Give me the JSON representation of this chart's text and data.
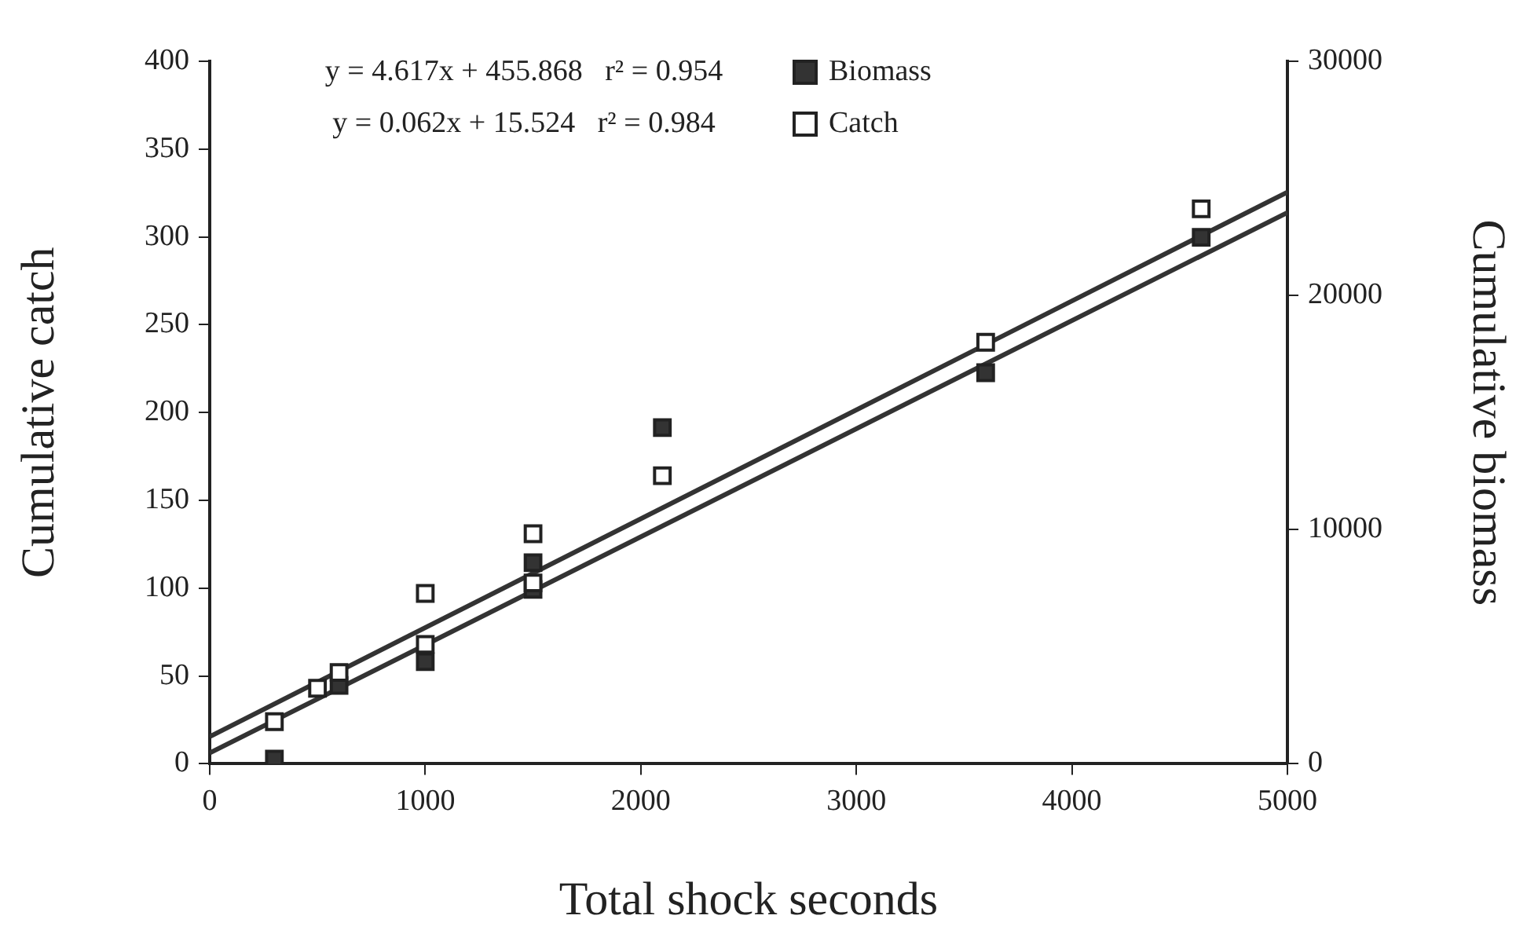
{
  "chart_data": {
    "type": "scatter",
    "xlabel": "Total shock seconds",
    "ylabel": "Cumulative catch",
    "y2label": "Cumulative biomass",
    "xlim": [
      0,
      5000
    ],
    "xticks": [
      0,
      1000,
      2000,
      3000,
      4000,
      5000
    ],
    "ylim": [
      0,
      400
    ],
    "yticks": [
      0,
      50,
      100,
      150,
      200,
      250,
      300,
      350,
      400
    ],
    "y2lim": [
      0,
      30000
    ],
    "y2ticks": [
      0,
      10000,
      20000,
      30000
    ],
    "grid": false,
    "legend": "top",
    "marker": "square",
    "annotations": [
      "y = 4.617x + 455.868   r² = 0.954",
      "y = 0.062x + 15.524   r² = 0.984"
    ],
    "series": [
      {
        "name": "Biomass",
        "color": "#333333",
        "axis": "y2",
        "x": [
          300,
          600,
          1000,
          1500,
          1500,
          2100,
          3600,
          4600
        ],
        "values": [
          200,
          3350,
          4360,
          8590,
          7450,
          14360,
          16700,
          22480
        ]
      },
      {
        "name": "Catch",
        "color": "#ffffff",
        "x": [
          300,
          500,
          600,
          1000,
          1000,
          1500,
          1500,
          2100,
          3600,
          4600
        ],
        "values": [
          24,
          43,
          52,
          97,
          68,
          131,
          103,
          164,
          240,
          316
        ]
      },
      {
        "type": "line",
        "color": "#333333",
        "axis": "y2",
        "marker": "none",
        "x": [
          0,
          5000
        ],
        "values": [
          460,
          23540
        ]
      },
      {
        "type": "line",
        "color": "#333333",
        "marker": "none",
        "x": [
          0,
          5000
        ],
        "values": [
          15.5,
          325.5
        ]
      }
    ]
  }
}
